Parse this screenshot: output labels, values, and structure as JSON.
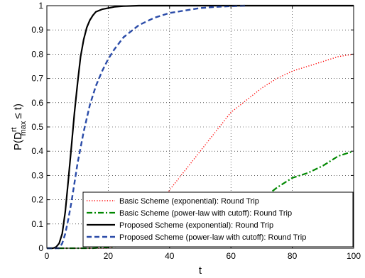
{
  "chart_data": {
    "type": "line",
    "xlabel": "t",
    "ylabel_main": "P(D",
    "ylabel_super": "rt",
    "ylabel_sub": "max",
    "ylabel_tail": "≤ t)",
    "xlim": [
      0,
      100
    ],
    "ylim": [
      0,
      1
    ],
    "xticks": [
      "0",
      "20",
      "40",
      "60",
      "80",
      "100"
    ],
    "yticks": [
      "0",
      "0.1",
      "0.2",
      "0.3",
      "0.4",
      "0.5",
      "0.6",
      "0.7",
      "0.8",
      "0.9",
      "1"
    ],
    "grid": true,
    "legend": {
      "position": "lower-right"
    },
    "series": [
      {
        "name": "Basic Scheme (exponential): Round Trip",
        "color": "#ff0000",
        "style": "dotted",
        "x": [
          0,
          20,
          30,
          35,
          40,
          45,
          50,
          55,
          60,
          65,
          70,
          75,
          80,
          85,
          90,
          95,
          100
        ],
        "y": [
          0,
          0,
          0.05,
          0.14,
          0.24,
          0.32,
          0.4,
          0.48,
          0.56,
          0.61,
          0.66,
          0.7,
          0.73,
          0.75,
          0.77,
          0.79,
          0.8
        ]
      },
      {
        "name": "Basic Scheme (power-law with cutoff): Round Trip",
        "color": "#008800",
        "style": "dashdot",
        "x": [
          0,
          15,
          20,
          25,
          30,
          40,
          50,
          60,
          65,
          70,
          75,
          80,
          85,
          90,
          95,
          100
        ],
        "y": [
          0,
          0,
          0.005,
          0.01,
          0.02,
          0.04,
          0.07,
          0.11,
          0.15,
          0.2,
          0.25,
          0.29,
          0.31,
          0.34,
          0.38,
          0.4
        ]
      },
      {
        "name": "Proposed Scheme (exponential): Round Trip",
        "color": "#000000",
        "style": "solid",
        "x": [
          0,
          2,
          3,
          4,
          5,
          6,
          7,
          8,
          9,
          10,
          11,
          12,
          13,
          14,
          15,
          16,
          18,
          20,
          22,
          25,
          30,
          40,
          60,
          100
        ],
        "y": [
          0,
          0,
          0.005,
          0.02,
          0.06,
          0.15,
          0.28,
          0.42,
          0.56,
          0.68,
          0.79,
          0.86,
          0.91,
          0.94,
          0.96,
          0.975,
          0.985,
          0.99,
          0.995,
          0.998,
          1,
          1,
          1,
          1
        ]
      },
      {
        "name": "Proposed Scheme (power-law with cutoff): Round Trip",
        "color": "#2a4ba8",
        "style": "dashed",
        "x": [
          0,
          4,
          5,
          6,
          7,
          8,
          9,
          10,
          12,
          14,
          16,
          18,
          20,
          22,
          25,
          28,
          30,
          35,
          40,
          45,
          50,
          55,
          60,
          65
        ],
        "y": [
          0,
          0,
          0.02,
          0.06,
          0.12,
          0.19,
          0.27,
          0.35,
          0.48,
          0.59,
          0.67,
          0.73,
          0.78,
          0.82,
          0.87,
          0.9,
          0.92,
          0.95,
          0.97,
          0.98,
          0.99,
          0.995,
          0.998,
          1
        ]
      }
    ]
  }
}
